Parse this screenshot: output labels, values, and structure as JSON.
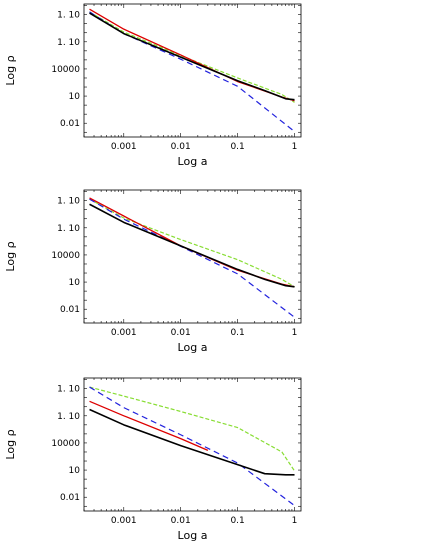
{
  "chart_data": [
    {
      "type": "line",
      "xlabel": "Log a",
      "ylabel": "Log ρ",
      "x_scale": "log",
      "y_scale": "log",
      "xlim": [
        0.0002,
        1.3
      ],
      "ylim": [
        0.0003,
        150000000000.0
      ],
      "x_ticks": [
        {
          "value": 0.001,
          "label": "0.001"
        },
        {
          "value": 0.01,
          "label": "0.01"
        },
        {
          "value": 0.1,
          "label": "0.1"
        },
        {
          "value": 1,
          "label": "1"
        }
      ],
      "y_ticks": [
        {
          "value": 0.01,
          "label": "0.01"
        },
        {
          "value": 10,
          "label": "10"
        },
        {
          "value": 10000,
          "label": "10000"
        },
        {
          "value": 10000000.0,
          "label": "1. 10"
        },
        {
          "value": 10000000000.0,
          "label": "1. 10"
        }
      ],
      "y_tick_exponents": {
        "1e7": "7",
        "1e10": "10"
      },
      "series": [
        {
          "color": "#dd0000",
          "style": "solid",
          "x": [
            0.00025,
            0.001,
            0.01,
            0.1,
            0.6,
            1.0
          ],
          "y": [
            40000000000.0,
            250000000.0,
            350000.0,
            400,
            8,
            3
          ]
        },
        {
          "color": "#88dd33",
          "style": "dashed",
          "x": [
            0.00025,
            0.001,
            0.01,
            0.1,
            0.6,
            1.0
          ],
          "y": [
            20000000000.0,
            120000000.0,
            300000.0,
            1000,
            15,
            2
          ]
        },
        {
          "color": "#2222dd",
          "style": "dashed",
          "x": [
            0.00025,
            0.001,
            0.01,
            0.1,
            1.0
          ],
          "y": [
            20000000000.0,
            80000000.0,
            120000.0,
            120,
            0.0012
          ]
        },
        {
          "color": "#000000",
          "style": "solid",
          "x": [
            0.00025,
            0.001,
            0.01,
            0.1,
            0.3,
            0.7,
            1.0
          ],
          "y": [
            15000000000.0,
            80000000.0,
            200000.0,
            500,
            40,
            5,
            4
          ]
        }
      ]
    },
    {
      "type": "line",
      "xlabel": "Log a",
      "ylabel": "Log ρ",
      "x_scale": "log",
      "y_scale": "log",
      "xlim": [
        0.0002,
        1.3
      ],
      "ylim": [
        0.0003,
        150000000000.0
      ],
      "x_ticks": [
        {
          "value": 0.001,
          "label": "0.001"
        },
        {
          "value": 0.01,
          "label": "0.01"
        },
        {
          "value": 0.1,
          "label": "0.1"
        },
        {
          "value": 1,
          "label": "1"
        }
      ],
      "y_ticks": [
        {
          "value": 0.01,
          "label": "0.01"
        },
        {
          "value": 10,
          "label": "10"
        },
        {
          "value": 10000,
          "label": "10000"
        },
        {
          "value": 10000000.0,
          "label": "1. 10"
        },
        {
          "value": 10000000000.0,
          "label": "1. 10"
        }
      ],
      "y_tick_exponents": {
        "1e7": "7",
        "1e10": "10"
      },
      "series": [
        {
          "color": "#dd0000",
          "style": "solid",
          "x": [
            0.00025,
            0.001,
            0.01,
            0.1,
            0.6,
            1.0
          ],
          "y": [
            20000000000.0,
            200000000.0,
            100000.0,
            200,
            6,
            3
          ]
        },
        {
          "color": "#88dd33",
          "style": "dashed",
          "x": [
            0.00025,
            0.001,
            0.01,
            0.1,
            0.6,
            1.0
          ],
          "y": [
            15000000000.0,
            120000000.0,
            500000.0,
            3000,
            20,
            3
          ]
        },
        {
          "color": "#2222dd",
          "style": "dashed",
          "x": [
            0.00025,
            0.001,
            0.01,
            0.1,
            1.0
          ],
          "y": [
            15000000000.0,
            90000000.0,
            90000.0,
            80,
            0.0013
          ]
        },
        {
          "color": "#000000",
          "style": "solid",
          "x": [
            0.00025,
            0.001,
            0.01,
            0.1,
            0.3,
            0.7,
            1.0
          ],
          "y": [
            4000000000.0,
            40000000.0,
            100000.0,
            250,
            20,
            4,
            3
          ]
        }
      ]
    },
    {
      "type": "line",
      "xlabel": "Log a",
      "ylabel": "Log ρ",
      "x_scale": "log",
      "y_scale": "log",
      "xlim": [
        0.0002,
        1.3
      ],
      "ylim": [
        0.0003,
        150000000000.0
      ],
      "x_ticks": [
        {
          "value": 0.001,
          "label": "0.001"
        },
        {
          "value": 0.01,
          "label": "0.01"
        },
        {
          "value": 0.1,
          "label": "0.1"
        },
        {
          "value": 1,
          "label": "1"
        }
      ],
      "y_ticks": [
        {
          "value": 0.01,
          "label": "0.01"
        },
        {
          "value": 10,
          "label": "10"
        },
        {
          "value": 10000,
          "label": "10000"
        },
        {
          "value": 10000000.0,
          "label": "1. 10"
        },
        {
          "value": 10000000000.0,
          "label": "1. 10"
        }
      ],
      "y_tick_exponents": {
        "1e7": "7",
        "1e10": "10"
      },
      "series": [
        {
          "color": "#dd0000",
          "style": "solid",
          "x": [
            0.00025,
            0.001,
            0.01,
            0.03
          ],
          "y": [
            400000000.0,
            10000000.0,
            30000.0,
            1500
          ]
        },
        {
          "color": "#88dd33",
          "style": "dashed",
          "x": [
            0.00025,
            0.001,
            0.01,
            0.1,
            0.6,
            1.0
          ],
          "y": [
            15000000000.0,
            1500000000.0,
            30000000.0,
            500000.0,
            1000,
            8
          ]
        },
        {
          "color": "#2222dd",
          "style": "dashed",
          "x": [
            0.00025,
            0.001,
            0.01,
            0.1,
            1.0
          ],
          "y": [
            15000000000.0,
            80000000.0,
            80000.0,
            60,
            0.0012
          ]
        },
        {
          "color": "#000000",
          "style": "solid",
          "x": [
            0.00025,
            0.001,
            0.01,
            0.1,
            0.3,
            0.7,
            1.0
          ],
          "y": [
            50000000.0,
            1000000.0,
            5000.0,
            40,
            4,
            3,
            3
          ]
        }
      ]
    }
  ]
}
